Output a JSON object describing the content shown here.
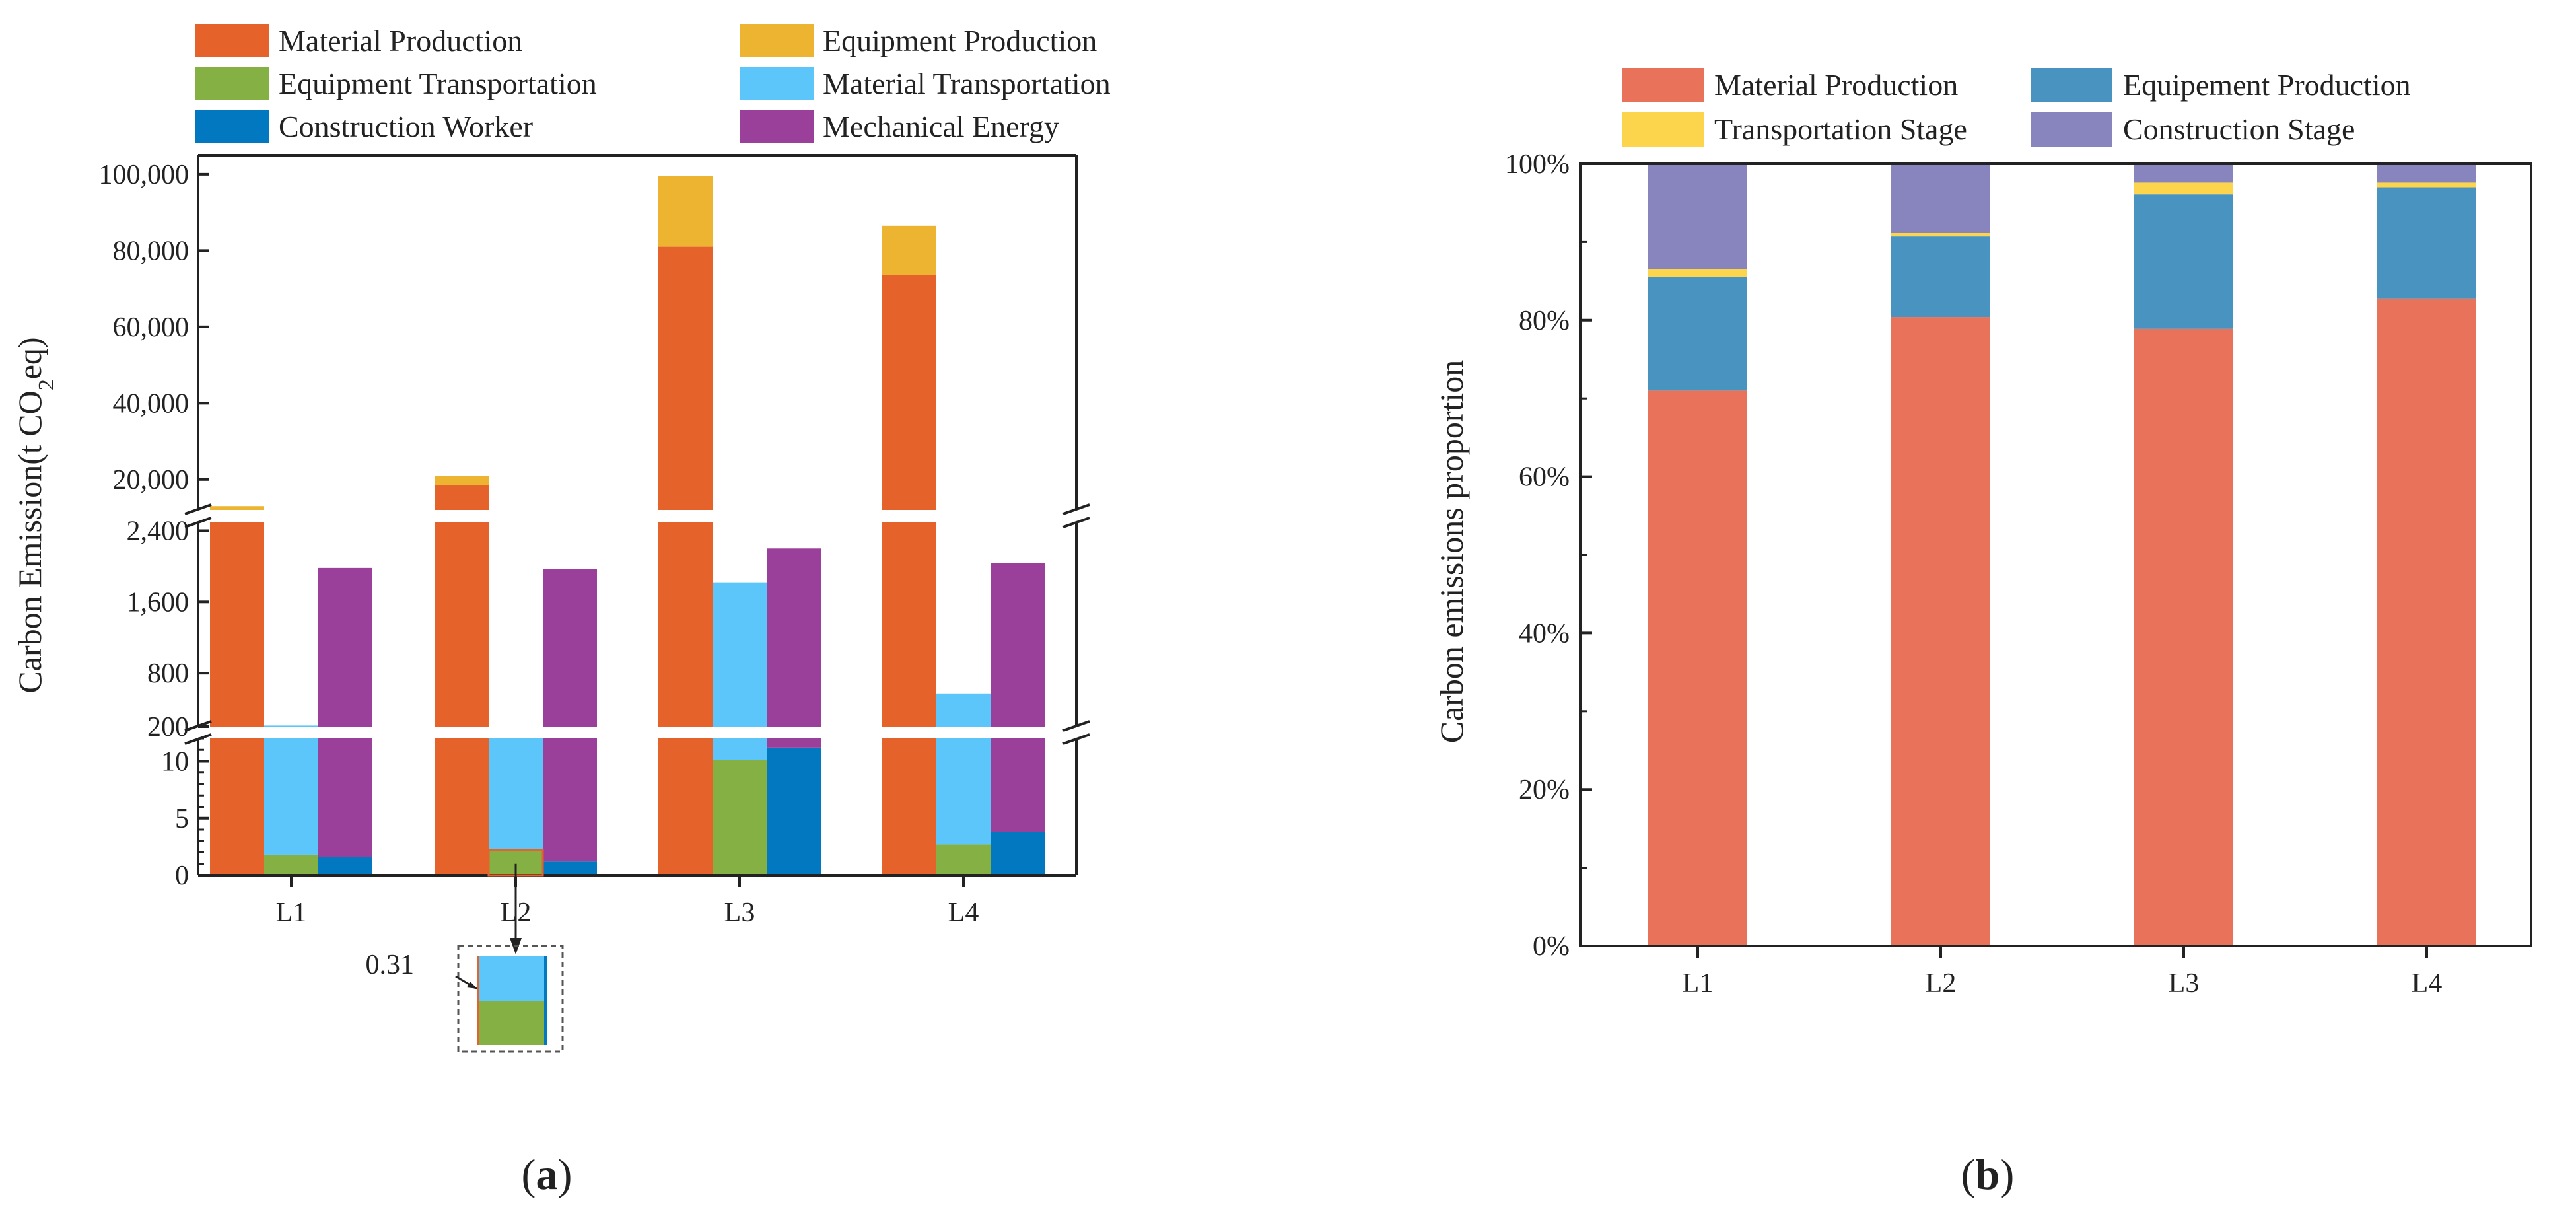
{
  "colors": {
    "material_production_a": "#E5622A",
    "equipment_production_a": "#EDB432",
    "equipment_transportation_a": "#85B043",
    "material_transportation_a": "#5CC6FA",
    "construction_worker_a": "#0178C0",
    "mechanical_energy_a": "#9A3F9A",
    "material_production_b": "#E8725A",
    "equipment_production_b": "#4893BF",
    "transportation_stage_b": "#FCD54D",
    "construction_stage_b": "#8784BE"
  },
  "panel_a": {
    "label_open": "(",
    "label_letter": "a",
    "label_close": ")",
    "annotation": "0.31",
    "chart_data": {
      "type": "bar",
      "categories": [
        "L1",
        "L2",
        "L3",
        "L4"
      ],
      "ylabel_parts": [
        "Carbon Emission(t CO",
        "2",
        "eq)"
      ],
      "y_axis_breaks": [
        [
          12,
          200
        ],
        [
          2500,
          12000
        ]
      ],
      "segments": [
        {
          "ylim": [
            0,
            12
          ],
          "ticks": [
            {
              "v": 0,
              "label": "0"
            },
            {
              "v": 5,
              "label": "5"
            },
            {
              "v": 10,
              "label": "10"
            }
          ]
        },
        {
          "ylim": [
            200,
            2500
          ],
          "ticks": [
            {
              "v": 200,
              "label": "200"
            },
            {
              "v": 800,
              "label": "800"
            },
            {
              "v": 1600,
              "label": "1,600"
            },
            {
              "v": 2400,
              "label": "2,400"
            }
          ]
        },
        {
          "ylim": [
            12000,
            105000
          ],
          "ticks": [
            {
              "v": 20000,
              "label": "20,000"
            },
            {
              "v": 40000,
              "label": "40,000"
            },
            {
              "v": 60000,
              "label": "60,000"
            },
            {
              "v": 80000,
              "label": "80,000"
            },
            {
              "v": 100000,
              "label": "100,000"
            }
          ]
        }
      ],
      "legend": [
        {
          "key": "material_production",
          "name": "Material Production",
          "color": "#E5622A"
        },
        {
          "key": "equipment_production",
          "name": "Equipment Production",
          "color": "#EDB432"
        },
        {
          "key": "equipment_transportation",
          "name": "Equipment Transportation",
          "color": "#85B043"
        },
        {
          "key": "material_transportation",
          "name": "Material Transportation",
          "color": "#5CC6FA"
        },
        {
          "key": "construction_worker",
          "name": "Construction Worker",
          "color": "#0178C0"
        },
        {
          "key": "mechanical_energy",
          "name": "Mechanical Energy",
          "color": "#9A3F9A"
        }
      ],
      "groups": [
        {
          "category": "L1",
          "bars": [
            {
              "stack": [
                {
                  "key": "material_production",
                  "value": 10500
                },
                {
                  "key": "equipment_production",
                  "value": 2500
                }
              ]
            },
            {
              "stack": [
                {
                  "key": "equipment_transportation",
                  "value": 1.8
                },
                {
                  "key": "material_transportation",
                  "value": 210
                }
              ]
            },
            {
              "stack": [
                {
                  "key": "construction_worker",
                  "value": 1.6
                },
                {
                  "key": "mechanical_energy",
                  "value": 1980
                }
              ]
            }
          ]
        },
        {
          "category": "L2",
          "bars": [
            {
              "stack": [
                {
                  "key": "material_production",
                  "value": 18500
                },
                {
                  "key": "equipment_production",
                  "value": 2400
                }
              ]
            },
            {
              "stack": [
                {
                  "key": "equipment_transportation",
                  "value": 2.2
                },
                {
                  "key": "material_transportation",
                  "value": 195
                }
              ]
            },
            {
              "stack": [
                {
                  "key": "construction_worker",
                  "value": 1.2
                },
                {
                  "key": "mechanical_energy",
                  "value": 1970
                }
              ]
            }
          ]
        },
        {
          "category": "L3",
          "bars": [
            {
              "stack": [
                {
                  "key": "material_production",
                  "value": 81000
                },
                {
                  "key": "equipment_production",
                  "value": 18500
                }
              ]
            },
            {
              "stack": [
                {
                  "key": "equipment_transportation",
                  "value": 10.1
                },
                {
                  "key": "material_transportation",
                  "value": 1810
                }
              ]
            },
            {
              "stack": [
                {
                  "key": "construction_worker",
                  "value": 11.2
                },
                {
                  "key": "mechanical_energy",
                  "value": 2190
                }
              ]
            }
          ]
        },
        {
          "category": "L4",
          "bars": [
            {
              "stack": [
                {
                  "key": "material_production",
                  "value": 73500
                },
                {
                  "key": "equipment_production",
                  "value": 13000
                }
              ]
            },
            {
              "stack": [
                {
                  "key": "equipment_transportation",
                  "value": 2.7
                },
                {
                  "key": "material_transportation",
                  "value": 570
                }
              ]
            },
            {
              "stack": [
                {
                  "key": "construction_worker",
                  "value": 3.8
                },
                {
                  "key": "mechanical_energy",
                  "value": 2030
                }
              ]
            }
          ]
        }
      ]
    }
  },
  "panel_b": {
    "label_open": "(",
    "label_letter": "b",
    "label_close": ")",
    "chart_data": {
      "type": "bar",
      "stacked": true,
      "categories": [
        "L1",
        "L2",
        "L3",
        "L4"
      ],
      "ylabel": "Carbon emissions proportion",
      "ylim": [
        0,
        100
      ],
      "yticks": [
        {
          "v": 0,
          "label": "0%"
        },
        {
          "v": 20,
          "label": "20%"
        },
        {
          "v": 40,
          "label": "40%"
        },
        {
          "v": 60,
          "label": "60%"
        },
        {
          "v": 80,
          "label": "80%"
        },
        {
          "v": 100,
          "label": "100%"
        }
      ],
      "series": [
        {
          "name": "Material Production",
          "color": "#E8725A",
          "values": [
            71.0,
            80.4,
            78.9,
            82.8
          ]
        },
        {
          "name": "Equipement Production",
          "color": "#4893BF",
          "values": [
            14.5,
            10.3,
            17.2,
            14.2
          ]
        },
        {
          "name": "Transportation Stage",
          "color": "#FCD54D",
          "values": [
            1.0,
            0.5,
            1.5,
            0.6
          ]
        },
        {
          "name": "Construction Stage",
          "color": "#8784BE",
          "values": [
            13.5,
            8.8,
            2.4,
            2.4
          ]
        }
      ]
    }
  }
}
